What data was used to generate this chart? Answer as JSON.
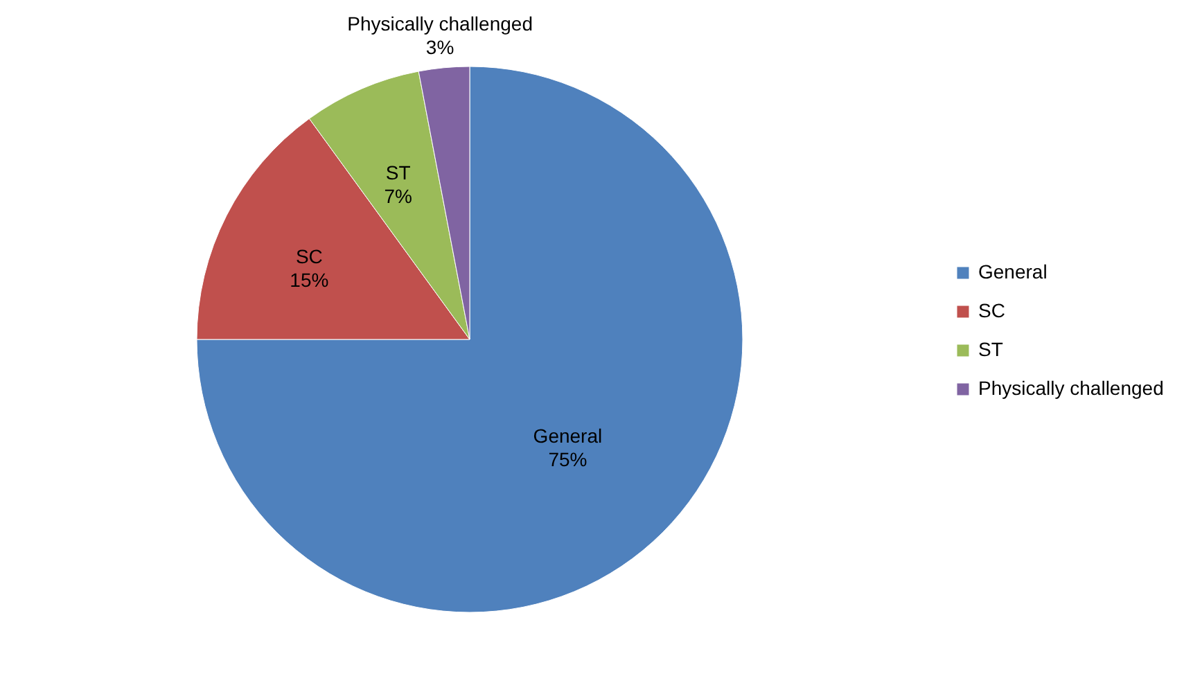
{
  "chart_data": {
    "type": "pie",
    "categories": [
      "General",
      "SC",
      "ST",
      "Physically challenged"
    ],
    "values": [
      75,
      15,
      7,
      3
    ],
    "value_labels": [
      "75%",
      "15%",
      "7%",
      "3%"
    ],
    "colors": [
      "#4f81bd",
      "#c0504d",
      "#9bbb59",
      "#8064a2"
    ],
    "legend": "right"
  }
}
